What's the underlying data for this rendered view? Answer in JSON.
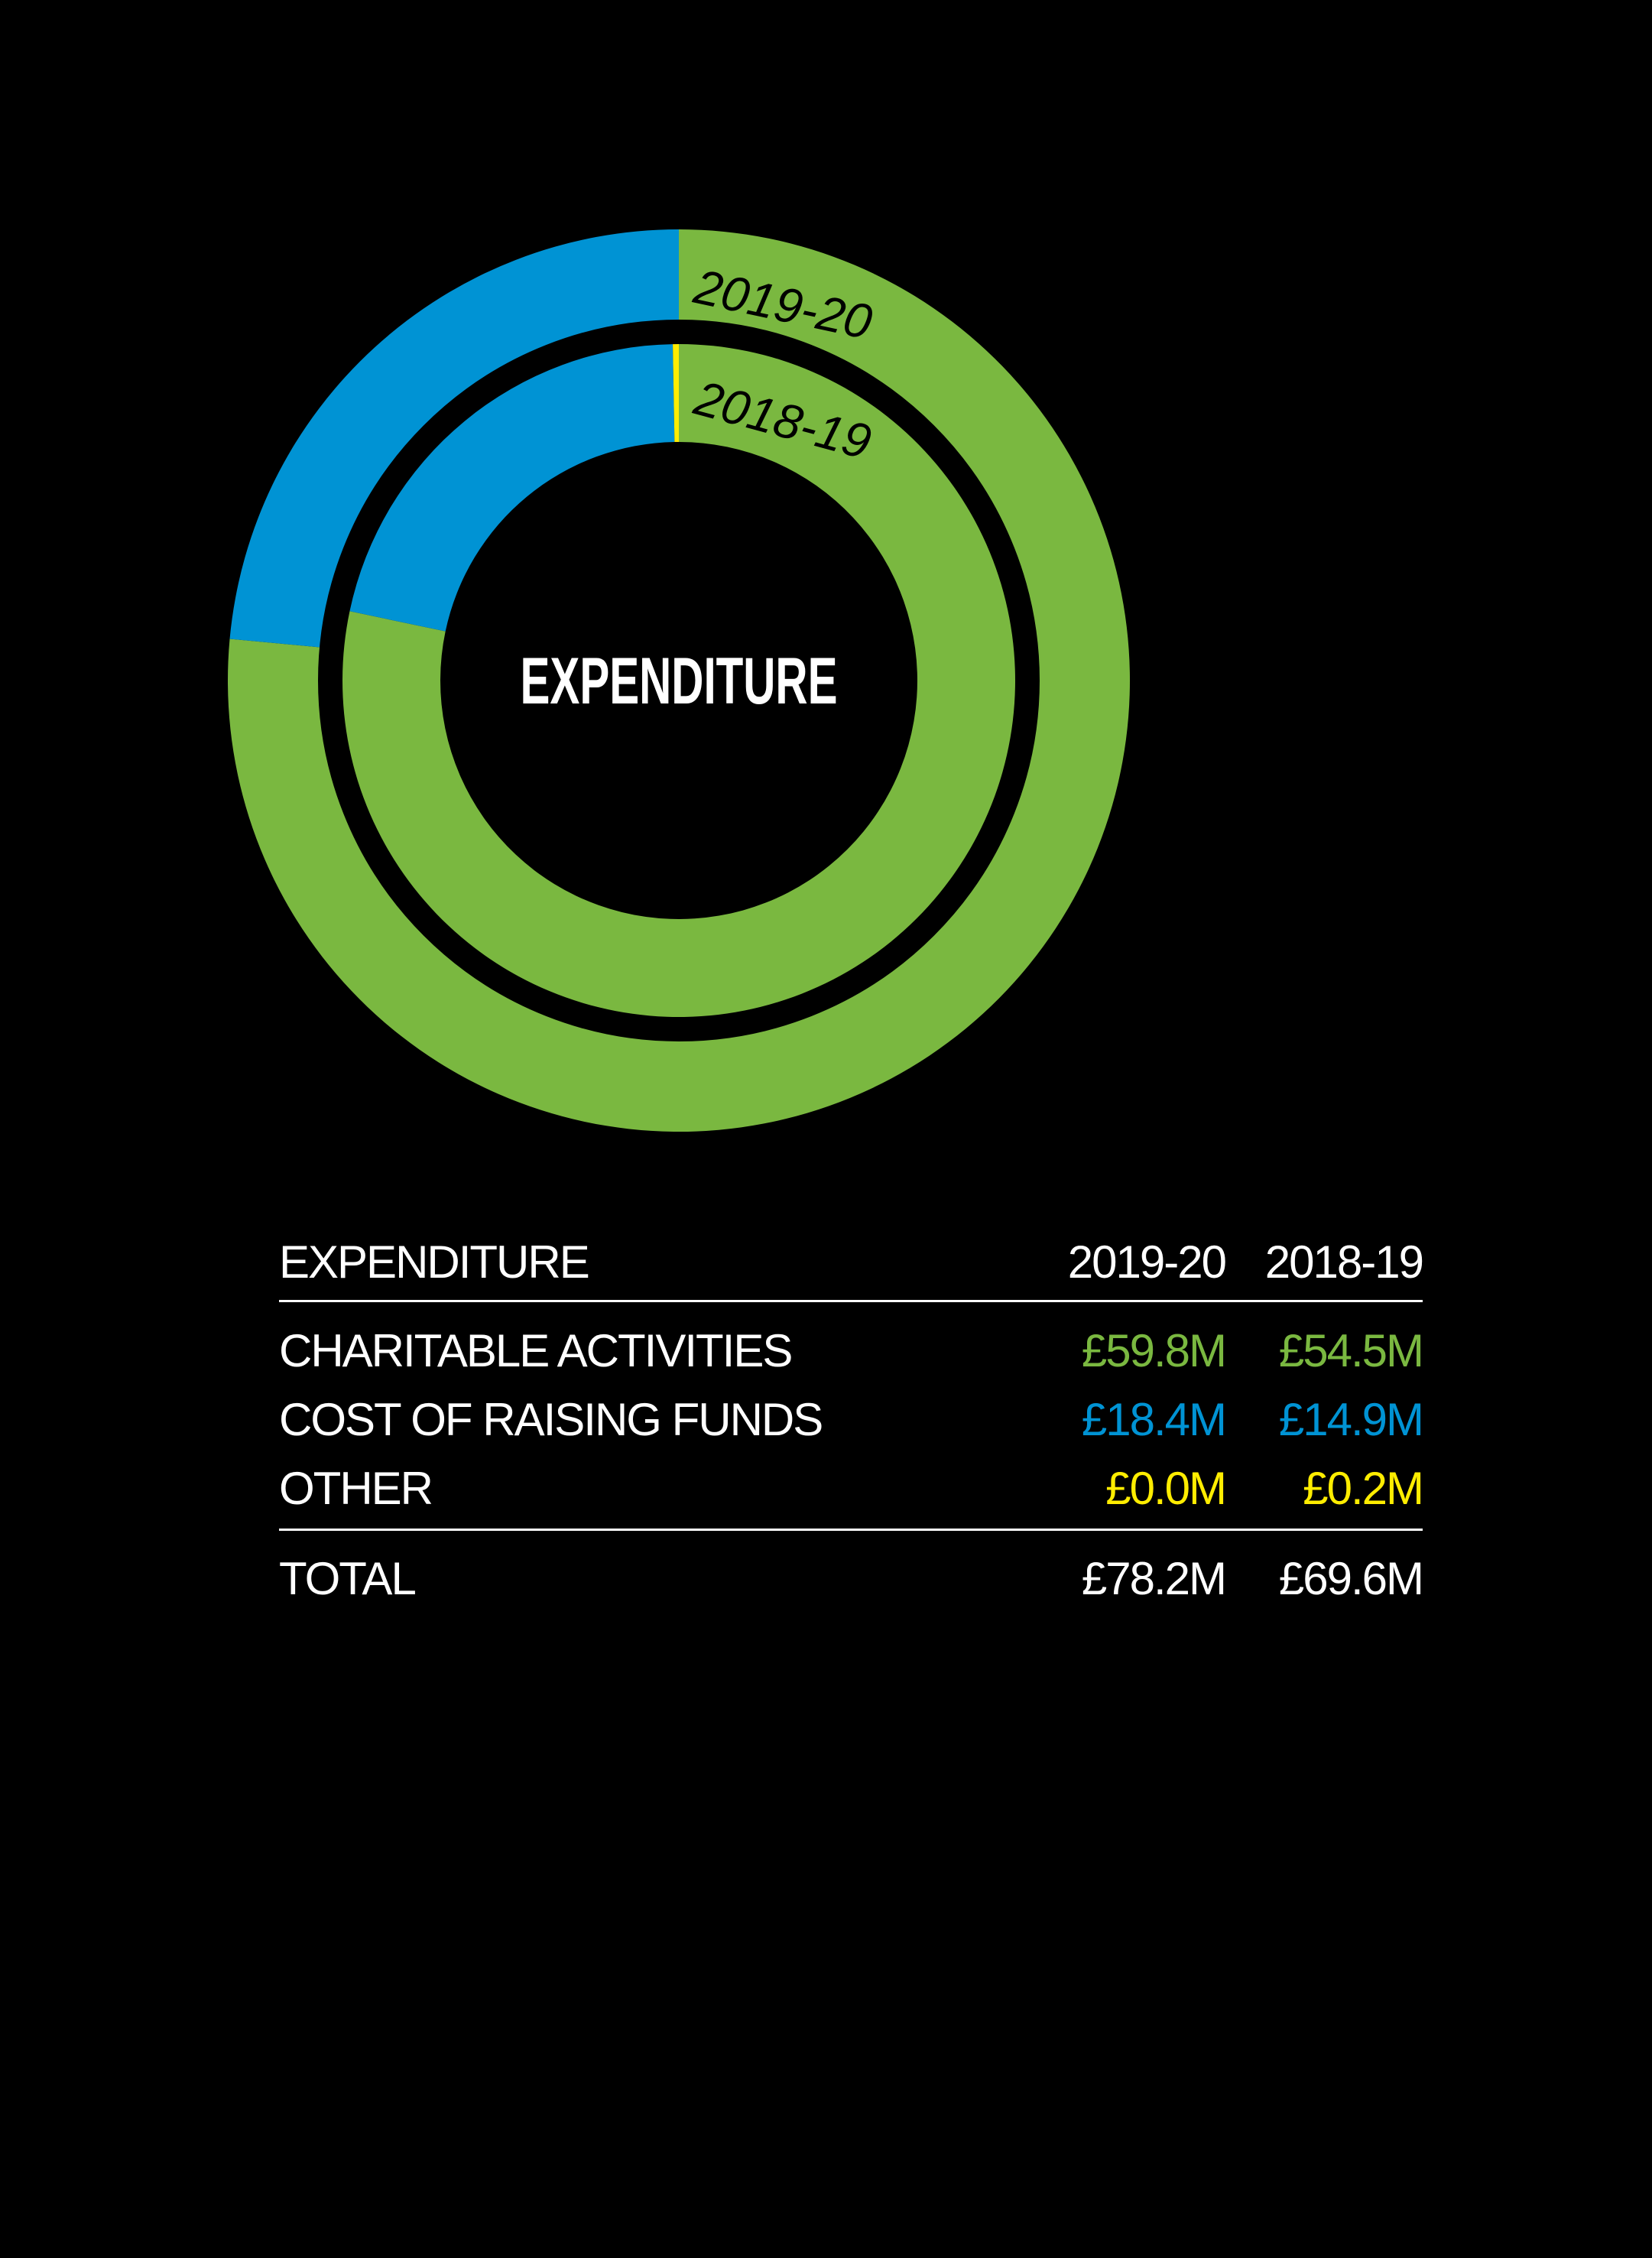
{
  "chart_data": {
    "type": "pie",
    "title": "EXPENDITURE",
    "categories": [
      "CHARITABLE ACTIVITIES",
      "COST OF RAISING FUNDS",
      "OTHER"
    ],
    "series": [
      {
        "name": "2019-20",
        "values": [
          59.8,
          18.4,
          0.0
        ]
      },
      {
        "name": "2018-19",
        "values": [
          54.5,
          14.9,
          0.2
        ]
      }
    ],
    "colors": [
      "#7ab840",
      "#0093d4",
      "#ffed00"
    ]
  },
  "table": {
    "header": {
      "label": "EXPENDITURE",
      "col1": "2019-20",
      "col2": "2018-19"
    },
    "rows": [
      {
        "label": "CHARITABLE ACTIVITIES",
        "v1": "£59.8M",
        "v2": "£54.5M",
        "color": "#7ab840"
      },
      {
        "label": "COST OF RAISING FUNDS",
        "v1": "£18.4M",
        "v2": "£14.9M",
        "color": "#0093d4"
      },
      {
        "label": "OTHER",
        "v1": "£0.0M",
        "v2": "£0.2M",
        "color": "#ffed00"
      }
    ],
    "total": {
      "label": "TOTAL",
      "v1": "£78.2M",
      "v2": "£69.6M"
    }
  }
}
